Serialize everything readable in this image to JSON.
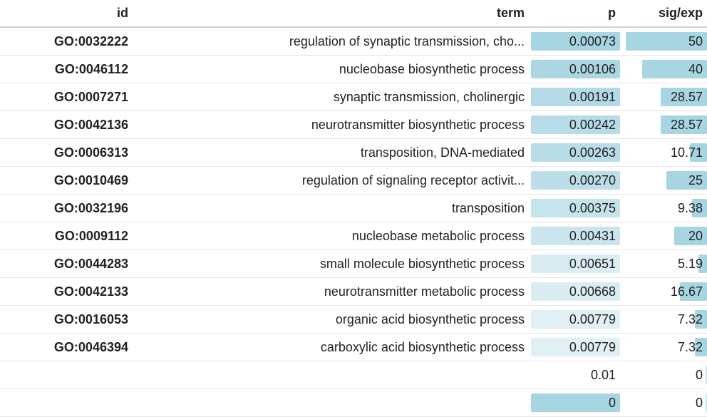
{
  "header": {
    "id": "id",
    "term": "term",
    "p": "p",
    "sig": "sig/exp"
  },
  "colors": {
    "bar_base": "#a8d5e2"
  },
  "rows": [
    {
      "id": "GO:0032222",
      "term": "regulation of synaptic transmission, cho...",
      "p": "0.00073",
      "p_level": 1.0,
      "sig": "50",
      "sig_level": 1.0
    },
    {
      "id": "GO:0046112",
      "term": "nucleobase biosynthetic process",
      "p": "0.00106",
      "p_level": 0.95,
      "sig": "40",
      "sig_level": 0.8
    },
    {
      "id": "GO:0007271",
      "term": "synaptic transmission, cholinergic",
      "p": "0.00191",
      "p_level": 0.85,
      "sig": "28.57",
      "sig_level": 0.5714
    },
    {
      "id": "GO:0042136",
      "term": "neurotransmitter biosynthetic process",
      "p": "0.00242",
      "p_level": 0.8,
      "sig": "28.57",
      "sig_level": 0.5714
    },
    {
      "id": "GO:0006313",
      "term": "transposition, DNA-mediated",
      "p": "0.00263",
      "p_level": 0.75,
      "sig": "10.71",
      "sig_level": 0.2142
    },
    {
      "id": "GO:0010469",
      "term": "regulation of signaling receptor activit...",
      "p": "0.00270",
      "p_level": 0.72,
      "sig": "25",
      "sig_level": 0.5
    },
    {
      "id": "GO:0032196",
      "term": "transposition",
      "p": "0.00375",
      "p_level": 0.6,
      "sig": "9.38",
      "sig_level": 0.1876
    },
    {
      "id": "GO:0009112",
      "term": "nucleobase metabolic process",
      "p": "0.00431",
      "p_level": 0.52,
      "sig": "20",
      "sig_level": 0.4
    },
    {
      "id": "GO:0044283",
      "term": "small molecule biosynthetic process",
      "p": "0.00651",
      "p_level": 0.3,
      "sig": "5.19",
      "sig_level": 0.1038
    },
    {
      "id": "GO:0042133",
      "term": "neurotransmitter metabolic process",
      "p": "0.00668",
      "p_level": 0.28,
      "sig": "16.67",
      "sig_level": 0.3334
    },
    {
      "id": "GO:0016053",
      "term": "organic acid biosynthetic process",
      "p": "0.00779",
      "p_level": 0.2,
      "sig": "7.32",
      "sig_level": 0.1464
    },
    {
      "id": "GO:0046394",
      "term": "carboxylic acid biosynthetic process",
      "p": "0.00779",
      "p_level": 0.2,
      "sig": "7.32",
      "sig_level": 0.1464
    },
    {
      "id": "",
      "term": "",
      "p": "0.01",
      "p_level": 0.0,
      "sig": "0",
      "sig_level": 0.0
    },
    {
      "id": "",
      "term": "",
      "p": "0",
      "p_level": 1.0,
      "sig": "0",
      "sig_level": 0.0
    }
  ]
}
